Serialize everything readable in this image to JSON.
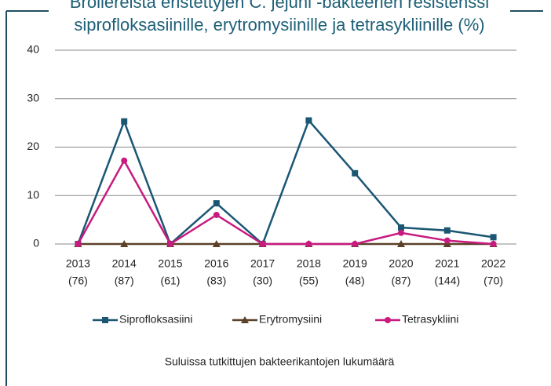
{
  "chart_data": {
    "type": "line",
    "title": [
      "Broilereista eristettyjen C. jejuni -bakteerien resistenssi",
      "siprofloksasiinille, erytromysiinille ja tetrasykliinille (%)"
    ],
    "categories": [
      "2013",
      "2014",
      "2015",
      "2016",
      "2017",
      "2018",
      "2019",
      "2020",
      "2021",
      "2022"
    ],
    "sample_sizes": [
      "(76)",
      "(87)",
      "(61)",
      "(83)",
      "(30)",
      "(55)",
      "(48)",
      "(87)",
      "(144)",
      "(70)"
    ],
    "series": [
      {
        "name": "Siprofloksasiini",
        "color": "#1b5673",
        "marker": "square",
        "values": [
          0,
          25.3,
          0,
          8.4,
          0,
          25.5,
          14.6,
          3.4,
          2.8,
          1.4
        ]
      },
      {
        "name": "Erytromysiini",
        "color": "#5a4128",
        "marker": "triangle",
        "values": [
          0,
          0,
          0,
          0,
          0,
          0,
          0,
          0,
          0,
          0
        ]
      },
      {
        "name": "Tetrasykliini",
        "color": "#c81a7f",
        "marker": "circle",
        "values": [
          0,
          17.2,
          0,
          6.0,
          0,
          0,
          0,
          2.3,
          0.7,
          0
        ]
      }
    ],
    "ylim": [
      0,
      40
    ],
    "yticks": [
      0,
      10,
      20,
      30,
      40
    ],
    "grid": true,
    "legend": "bottom",
    "note": "Suluissa tutkittujen bakteerikantojen lukumäärä"
  }
}
